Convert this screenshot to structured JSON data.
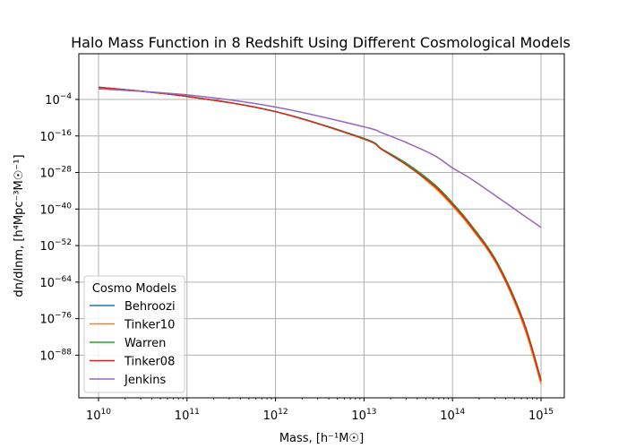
{
  "chart_data": {
    "type": "line",
    "title": "Halo Mass Function in 8 Redshift Using Different Cosmological Models",
    "xlabel": "Mass, [h⁻¹M☉]",
    "ylabel": "dn/dlnm, [h⁴Mpc⁻³M☉⁻¹]",
    "x_scale": "log",
    "y_scale": "log",
    "xlim_exp": [
      10,
      15
    ],
    "ylim_exp": [
      -102,
      11
    ],
    "x_tick_exponents": [
      10,
      11,
      12,
      13,
      14,
      15
    ],
    "y_tick_exponents": [
      -88,
      -76,
      -64,
      -52,
      -40,
      -28,
      -16,
      -4
    ],
    "x": [
      10000000000.0,
      100000000000.0,
      1000000000000.0,
      10000000000000.0,
      16000000000000.0,
      32000000000000.0,
      63000000000000.0,
      100000000000000.0,
      160000000000000.0,
      320000000000000.0,
      630000000000000.0,
      1000000000000000.0
    ],
    "series": [
      {
        "name": "Behroozi",
        "color": "#1f77b4",
        "log10_values": [
          0,
          -3,
          -8,
          -17,
          -20.5,
          -26,
          -32.5,
          -38.5,
          -45.5,
          -58,
          -77,
          -96.5
        ]
      },
      {
        "name": "Tinker10",
        "color": "#ff7f0e",
        "log10_values": [
          0,
          -3,
          -8,
          -17,
          -20.5,
          -26,
          -33,
          -39,
          -46,
          -58.5,
          -78,
          -97.5
        ]
      },
      {
        "name": "Warren",
        "color": "#2ca02c",
        "log10_values": [
          0,
          -3,
          -8,
          -16.8,
          -20.3,
          -25.5,
          -32,
          -38,
          -45,
          -57.5,
          -76.5,
          -96
        ]
      },
      {
        "name": "Tinker08",
        "color": "#d62728",
        "log10_values": [
          0,
          -3,
          -8,
          -17,
          -20.5,
          -26,
          -32.5,
          -38.5,
          -45.5,
          -58,
          -77,
          -96.5
        ]
      },
      {
        "name": "Jenkins",
        "color": "#9467bd",
        "log10_values": [
          -0.5,
          -2.5,
          -6.5,
          -13,
          -15,
          -18.5,
          -22.5,
          -26.5,
          -30,
          -36,
          -42,
          -46
        ]
      }
    ],
    "grid": true,
    "legend": {
      "title": "Cosmo Models",
      "position": "lower-left"
    }
  }
}
